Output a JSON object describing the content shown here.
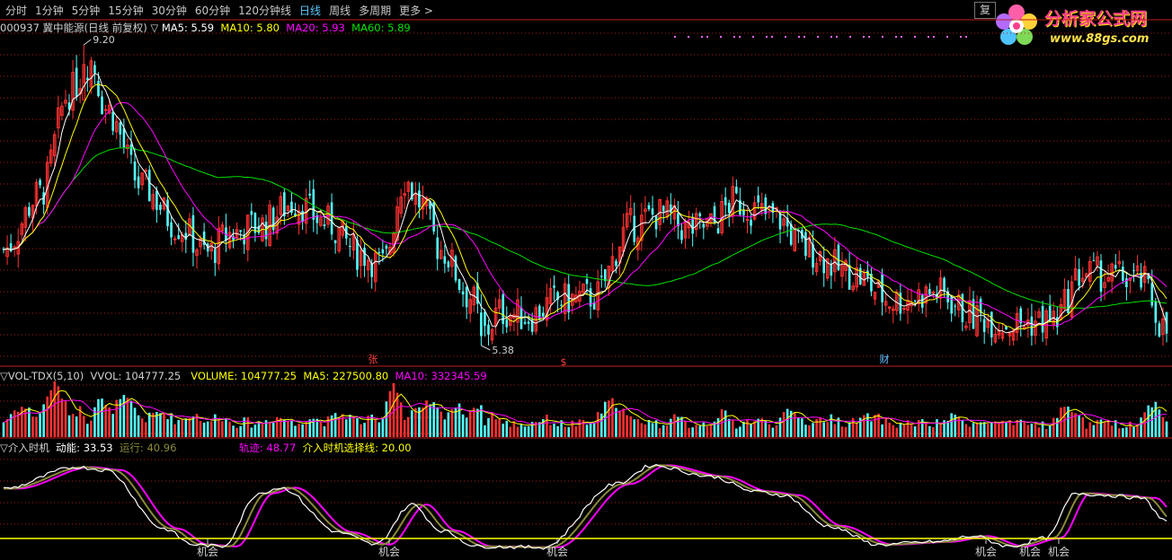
{
  "toolbar": {
    "timeframes": [
      "分时",
      "1分钟",
      "5分钟",
      "15分钟",
      "30分钟",
      "60分钟",
      "120分钟线",
      "日线",
      "周线",
      "多周期",
      "更多 >"
    ],
    "active_index": 7,
    "fq_button": "复权"
  },
  "logo": {
    "title": "分析家公式网",
    "url": "www.88gs.com"
  },
  "price_panel": {
    "stock": "000937 冀中能源(日线 前复权)",
    "indicators": [
      {
        "label": "MA5: 5.59",
        "color": "#ffffff"
      },
      {
        "label": "MA10: 5.80",
        "color": "#ffff00"
      },
      {
        "label": "MA20: 5.93",
        "color": "#ff00ff"
      },
      {
        "label": "MA60: 5.89",
        "color": "#00e000"
      }
    ],
    "high_marker": "9.20",
    "low_marker": "5.38",
    "event_marks": [
      {
        "text": "张",
        "color": "#ff4040"
      },
      {
        "text": "$",
        "color": "#ff4040"
      },
      {
        "text": "财",
        "color": "#60c0ff"
      }
    ]
  },
  "volume_panel": {
    "name": "VOL-TDX(5,10)",
    "vvol": "VVOL: 104777.25",
    "volume": "VOLUME: 104777.25",
    "ma5": "MA5: 227500.80",
    "ma10": "MA10: 332345.59"
  },
  "osc_panel": {
    "name": "介入时机",
    "dongneng": "动能: 33.53",
    "yunxing": "运行: 40.96",
    "guiji": "轨迹: 48.77",
    "xuanze": "介入时机选择线: 20.00",
    "signal_label": "机会"
  },
  "colors": {
    "up": "#ff3232",
    "down": "#54ffff",
    "ma5": "#ffffff",
    "ma10": "#ffff00",
    "ma20": "#ff00ff",
    "ma60": "#00e000",
    "grid": "#b01818",
    "active": "#5dc8ff"
  },
  "chart_data": {
    "type": "candlestick",
    "price_high": 9.2,
    "price_low": 5.38,
    "ma5": 5.59,
    "ma10": 5.8,
    "ma20": 5.93,
    "ma60": 5.89,
    "volume": 104777.25,
    "volume_ma5": 227500.8,
    "volume_ma10": 332345.59,
    "oscillator": {
      "dongneng": 33.53,
      "yunxing": 40.96,
      "guiji": 48.77,
      "selection_line": 20.0
    }
  }
}
